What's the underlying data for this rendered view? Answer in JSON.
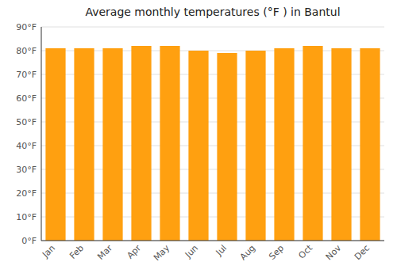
{
  "chart_data": {
    "type": "bar",
    "title": "Average monthly temperatures (°F ) in Bantul",
    "categories": [
      "Jan",
      "Feb",
      "Mar",
      "Apr",
      "May",
      "Jun",
      "Jul",
      "Aug",
      "Sep",
      "Oct",
      "Nov",
      "Dec"
    ],
    "values": [
      81,
      81,
      81,
      82,
      82,
      80,
      79,
      80,
      81,
      82,
      81,
      81
    ],
    "color": "#FFA010",
    "ylim": [
      0,
      90
    ],
    "yticks": [
      {
        "value": 0,
        "label": "0°F"
      },
      {
        "value": 10,
        "label": "10°F"
      },
      {
        "value": 20,
        "label": "20°F"
      },
      {
        "value": 30,
        "label": "30°F"
      },
      {
        "value": 40,
        "label": "40°F"
      },
      {
        "value": 50,
        "label": "50°F"
      },
      {
        "value": 60,
        "label": "60°F"
      },
      {
        "value": 70,
        "label": "70°F"
      },
      {
        "value": 80,
        "label": "80°F"
      },
      {
        "value": 90,
        "label": "90°F"
      }
    ],
    "grid": true
  }
}
